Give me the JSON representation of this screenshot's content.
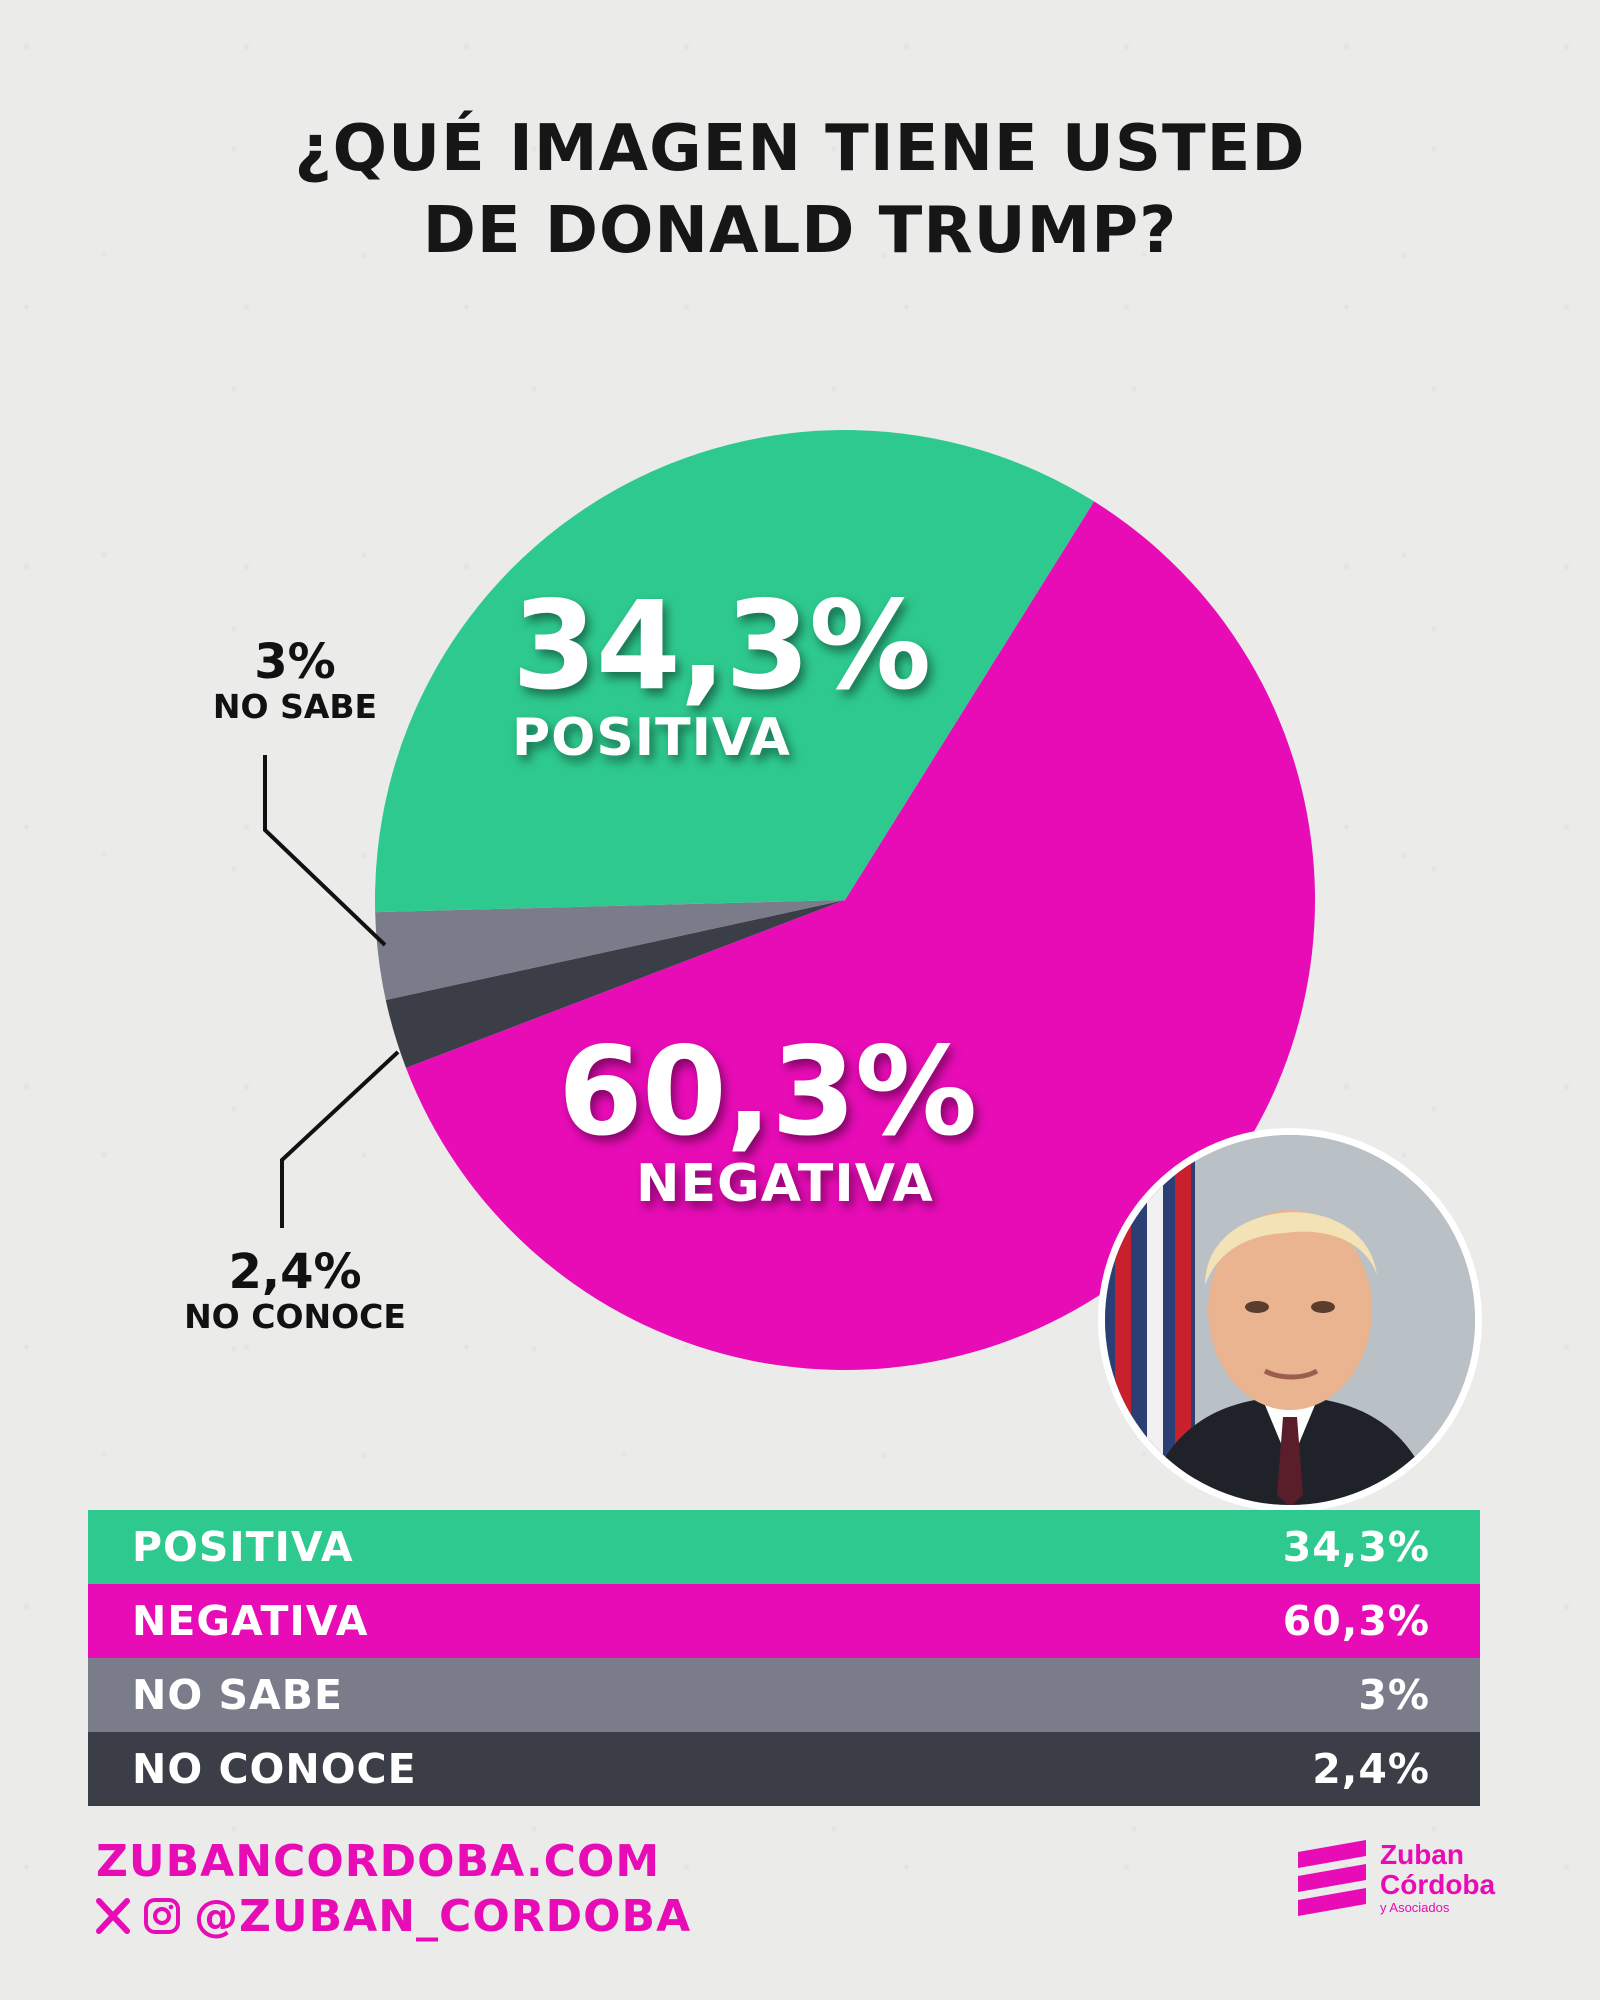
{
  "header": {
    "title_line1": "¿QUÉ IMAGEN TIENE USTED",
    "title_line2": "DE DONALD TRUMP?"
  },
  "chart_data": {
    "type": "pie",
    "title": "¿QUÉ IMAGEN TIENE USTED DE DONALD TRUMP?",
    "slices": [
      {
        "label": "POSITIVA",
        "value": 34.3,
        "display": "34,3%",
        "color": "#2ec98e"
      },
      {
        "label": "NEGATIVA",
        "value": 60.3,
        "display": "60,3%",
        "color": "#e80cb7"
      },
      {
        "label": "NO SABE",
        "value": 3,
        "display": "3%",
        "color": "#7a7d89"
      },
      {
        "label": "NO CONOCE",
        "value": 2.4,
        "display": "2,4%",
        "color": "#3c3e47"
      }
    ]
  },
  "pie_labels": {
    "positiva": {
      "value": "34,3%",
      "label": "POSITIVA"
    },
    "negativa": {
      "value": "60,3%",
      "label": "NEGATIVA"
    },
    "no_sabe": {
      "value": "3%",
      "label": "NO SABE"
    },
    "no_conoce": {
      "value": "2,4%",
      "label": "NO CONOCE"
    }
  },
  "table": {
    "rows": [
      {
        "label": "POSITIVA",
        "value": "34,3%",
        "color": "#2ec98e"
      },
      {
        "label": "NEGATIVA",
        "value": "60,3%",
        "color": "#e80cb7"
      },
      {
        "label": "NO SABE",
        "value": "3%",
        "color": "#7a7d89"
      },
      {
        "label": "NO CONOCE",
        "value": "2,4%",
        "color": "#3c3e47"
      }
    ]
  },
  "footer": {
    "website": "ZUBANCORDOBA.COM",
    "handle": "@ZUBAN_CORDOBA",
    "social_icons": [
      "x-icon",
      "instagram-icon"
    ]
  },
  "logo": {
    "line1": "Zuban",
    "line2": "Córdoba",
    "line3": "y Asociados"
  },
  "colors": {
    "accent": "#e80cb7",
    "positive": "#2ec98e",
    "unknown": "#7a7d89",
    "not_known": "#3c3e47"
  }
}
